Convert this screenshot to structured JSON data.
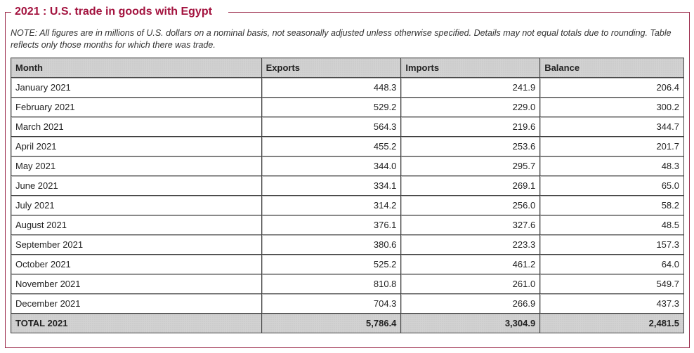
{
  "section": {
    "title": "2021 : U.S. trade in goods with Egypt",
    "note": "NOTE: All figures are in millions of U.S. dollars on a nominal basis, not seasonally adjusted unless otherwise specified. Details may not equal totals due to rounding. Table reflects only those months for which there was trade."
  },
  "colors": {
    "frame_border": "#9b2a4a",
    "title_text": "#a3133f",
    "header_bg": "#d2d2d2"
  },
  "table": {
    "columns": [
      "Month",
      "Exports",
      "Imports",
      "Balance"
    ],
    "rows": [
      {
        "month": "January 2021",
        "exports": "448.3",
        "imports": "241.9",
        "balance": "206.4"
      },
      {
        "month": "February 2021",
        "exports": "529.2",
        "imports": "229.0",
        "balance": "300.2"
      },
      {
        "month": "March 2021",
        "exports": "564.3",
        "imports": "219.6",
        "balance": "344.7"
      },
      {
        "month": "April 2021",
        "exports": "455.2",
        "imports": "253.6",
        "balance": "201.7"
      },
      {
        "month": "May 2021",
        "exports": "344.0",
        "imports": "295.7",
        "balance": "48.3"
      },
      {
        "month": "June 2021",
        "exports": "334.1",
        "imports": "269.1",
        "balance": "65.0"
      },
      {
        "month": "July 2021",
        "exports": "314.2",
        "imports": "256.0",
        "balance": "58.2"
      },
      {
        "month": "August 2021",
        "exports": "376.1",
        "imports": "327.6",
        "balance": "48.5"
      },
      {
        "month": "September 2021",
        "exports": "380.6",
        "imports": "223.3",
        "balance": "157.3"
      },
      {
        "month": "October 2021",
        "exports": "525.2",
        "imports": "461.2",
        "balance": "64.0"
      },
      {
        "month": "November 2021",
        "exports": "810.8",
        "imports": "261.0",
        "balance": "549.7"
      },
      {
        "month": "December 2021",
        "exports": "704.3",
        "imports": "266.9",
        "balance": "437.3"
      }
    ],
    "total": {
      "month": "TOTAL 2021",
      "exports": "5,786.4",
      "imports": "3,304.9",
      "balance": "2,481.5"
    }
  }
}
